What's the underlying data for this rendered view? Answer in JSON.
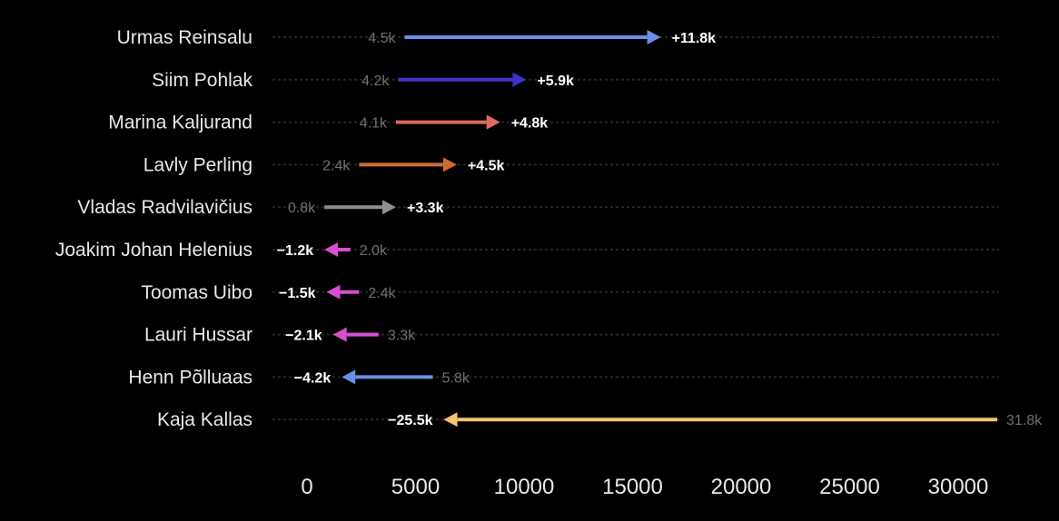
{
  "chart_data": {
    "type": "arrow",
    "xlim": [
      0,
      32500
    ],
    "x_ticks": [
      "0",
      "5000",
      "10000",
      "15000",
      "20000",
      "25000",
      "30000"
    ],
    "grid": false,
    "rows": [
      {
        "name": "Urmas Reinsalu",
        "start": 4500,
        "end": 16300,
        "start_label": "4.5k",
        "delta_label": "+11.8k",
        "color": "#6a8fe8"
      },
      {
        "name": "Siim Pohlak",
        "start": 4200,
        "end": 10100,
        "start_label": "4.2k",
        "delta_label": "+5.9k",
        "color": "#3b32c8"
      },
      {
        "name": "Marina Kaljurand",
        "start": 4100,
        "end": 8900,
        "start_label": "4.1k",
        "delta_label": "+4.8k",
        "color": "#e06a5e"
      },
      {
        "name": "Lavly Perling",
        "start": 2400,
        "end": 6900,
        "start_label": "2.4k",
        "delta_label": "+4.5k",
        "color": "#cf6a33"
      },
      {
        "name": "Vladas Radvilavičius",
        "start": 800,
        "end": 4100,
        "start_label": "0.8k",
        "delta_label": "+3.3k",
        "color": "#8f8f8f"
      },
      {
        "name": "Joakim Johan Helenius",
        "start": 2000,
        "end": 800,
        "start_label": "2.0k",
        "delta_label": "−1.2k",
        "color": "#d64fcf"
      },
      {
        "name": "Toomas Uibo",
        "start": 2400,
        "end": 900,
        "start_label": "2.4k",
        "delta_label": "−1.5k",
        "color": "#d64fcf"
      },
      {
        "name": "Lauri Hussar",
        "start": 3300,
        "end": 1200,
        "start_label": "3.3k",
        "delta_label": "−2.1k",
        "color": "#d64fcf"
      },
      {
        "name": "Henn Põlluaas",
        "start": 5800,
        "end": 1600,
        "start_label": "5.8k",
        "delta_label": "−4.2k",
        "color": "#6a8fe8"
      },
      {
        "name": "Kaja Kallas",
        "start": 31800,
        "end": 6300,
        "start_label": "31.8k",
        "delta_label": "−25.5k",
        "color": "#f2c46e"
      }
    ]
  }
}
